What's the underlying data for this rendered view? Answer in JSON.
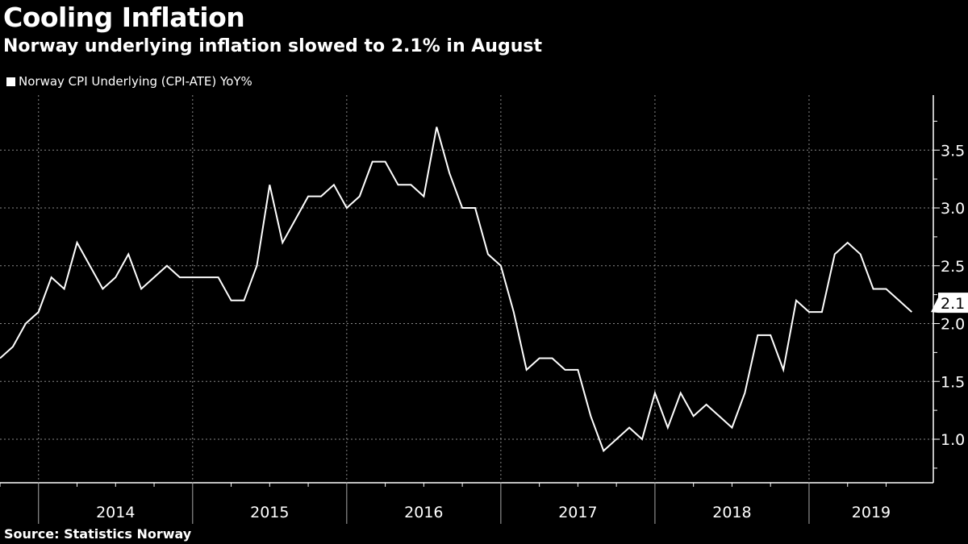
{
  "chart_data": {
    "type": "line",
    "title": "Cooling Inflation",
    "subtitle": "Norway underlying inflation slowed to 2.1% in August",
    "source": "Source: Statistics Norway",
    "legend": "Norway CPI Underlying (CPI-ATE) YoY%",
    "legend_position": "top-left",
    "x_start": "2013-09",
    "x_end": "2019-08",
    "x_frequency": "monthly",
    "x_tick_labels": [
      "2014",
      "2015",
      "2016",
      "2017",
      "2018",
      "2019"
    ],
    "y_tick_labels": [
      "1.0",
      "1.5",
      "2.0",
      "2.5",
      "3.0",
      "3.5"
    ],
    "ylim": [
      0.75,
      3.9
    ],
    "y_axis_side": "right",
    "grid": true,
    "last_value_label": "2.1",
    "series": [
      {
        "name": "Norway CPI Underlying (CPI-ATE) YoY%",
        "color": "#ffffff",
        "values": [
          1.7,
          1.8,
          2.0,
          2.1,
          2.4,
          2.3,
          2.7,
          2.5,
          2.3,
          2.4,
          2.6,
          2.3,
          2.4,
          2.5,
          2.4,
          2.4,
          2.4,
          2.4,
          2.2,
          2.2,
          2.5,
          3.2,
          2.7,
          2.9,
          3.1,
          3.1,
          3.2,
          3.0,
          3.1,
          3.4,
          3.4,
          3.2,
          3.2,
          3.1,
          3.7,
          3.3,
          3.0,
          3.0,
          2.6,
          2.5,
          2.1,
          1.6,
          1.7,
          1.7,
          1.6,
          1.6,
          1.2,
          0.9,
          1.0,
          1.1,
          1.0,
          1.4,
          1.1,
          1.4,
          1.2,
          1.3,
          1.2,
          1.1,
          1.4,
          1.9,
          1.9,
          1.6,
          2.2,
          2.1,
          2.1,
          2.6,
          2.7,
          2.6,
          2.3,
          2.3,
          2.2,
          2.1
        ]
      }
    ]
  }
}
